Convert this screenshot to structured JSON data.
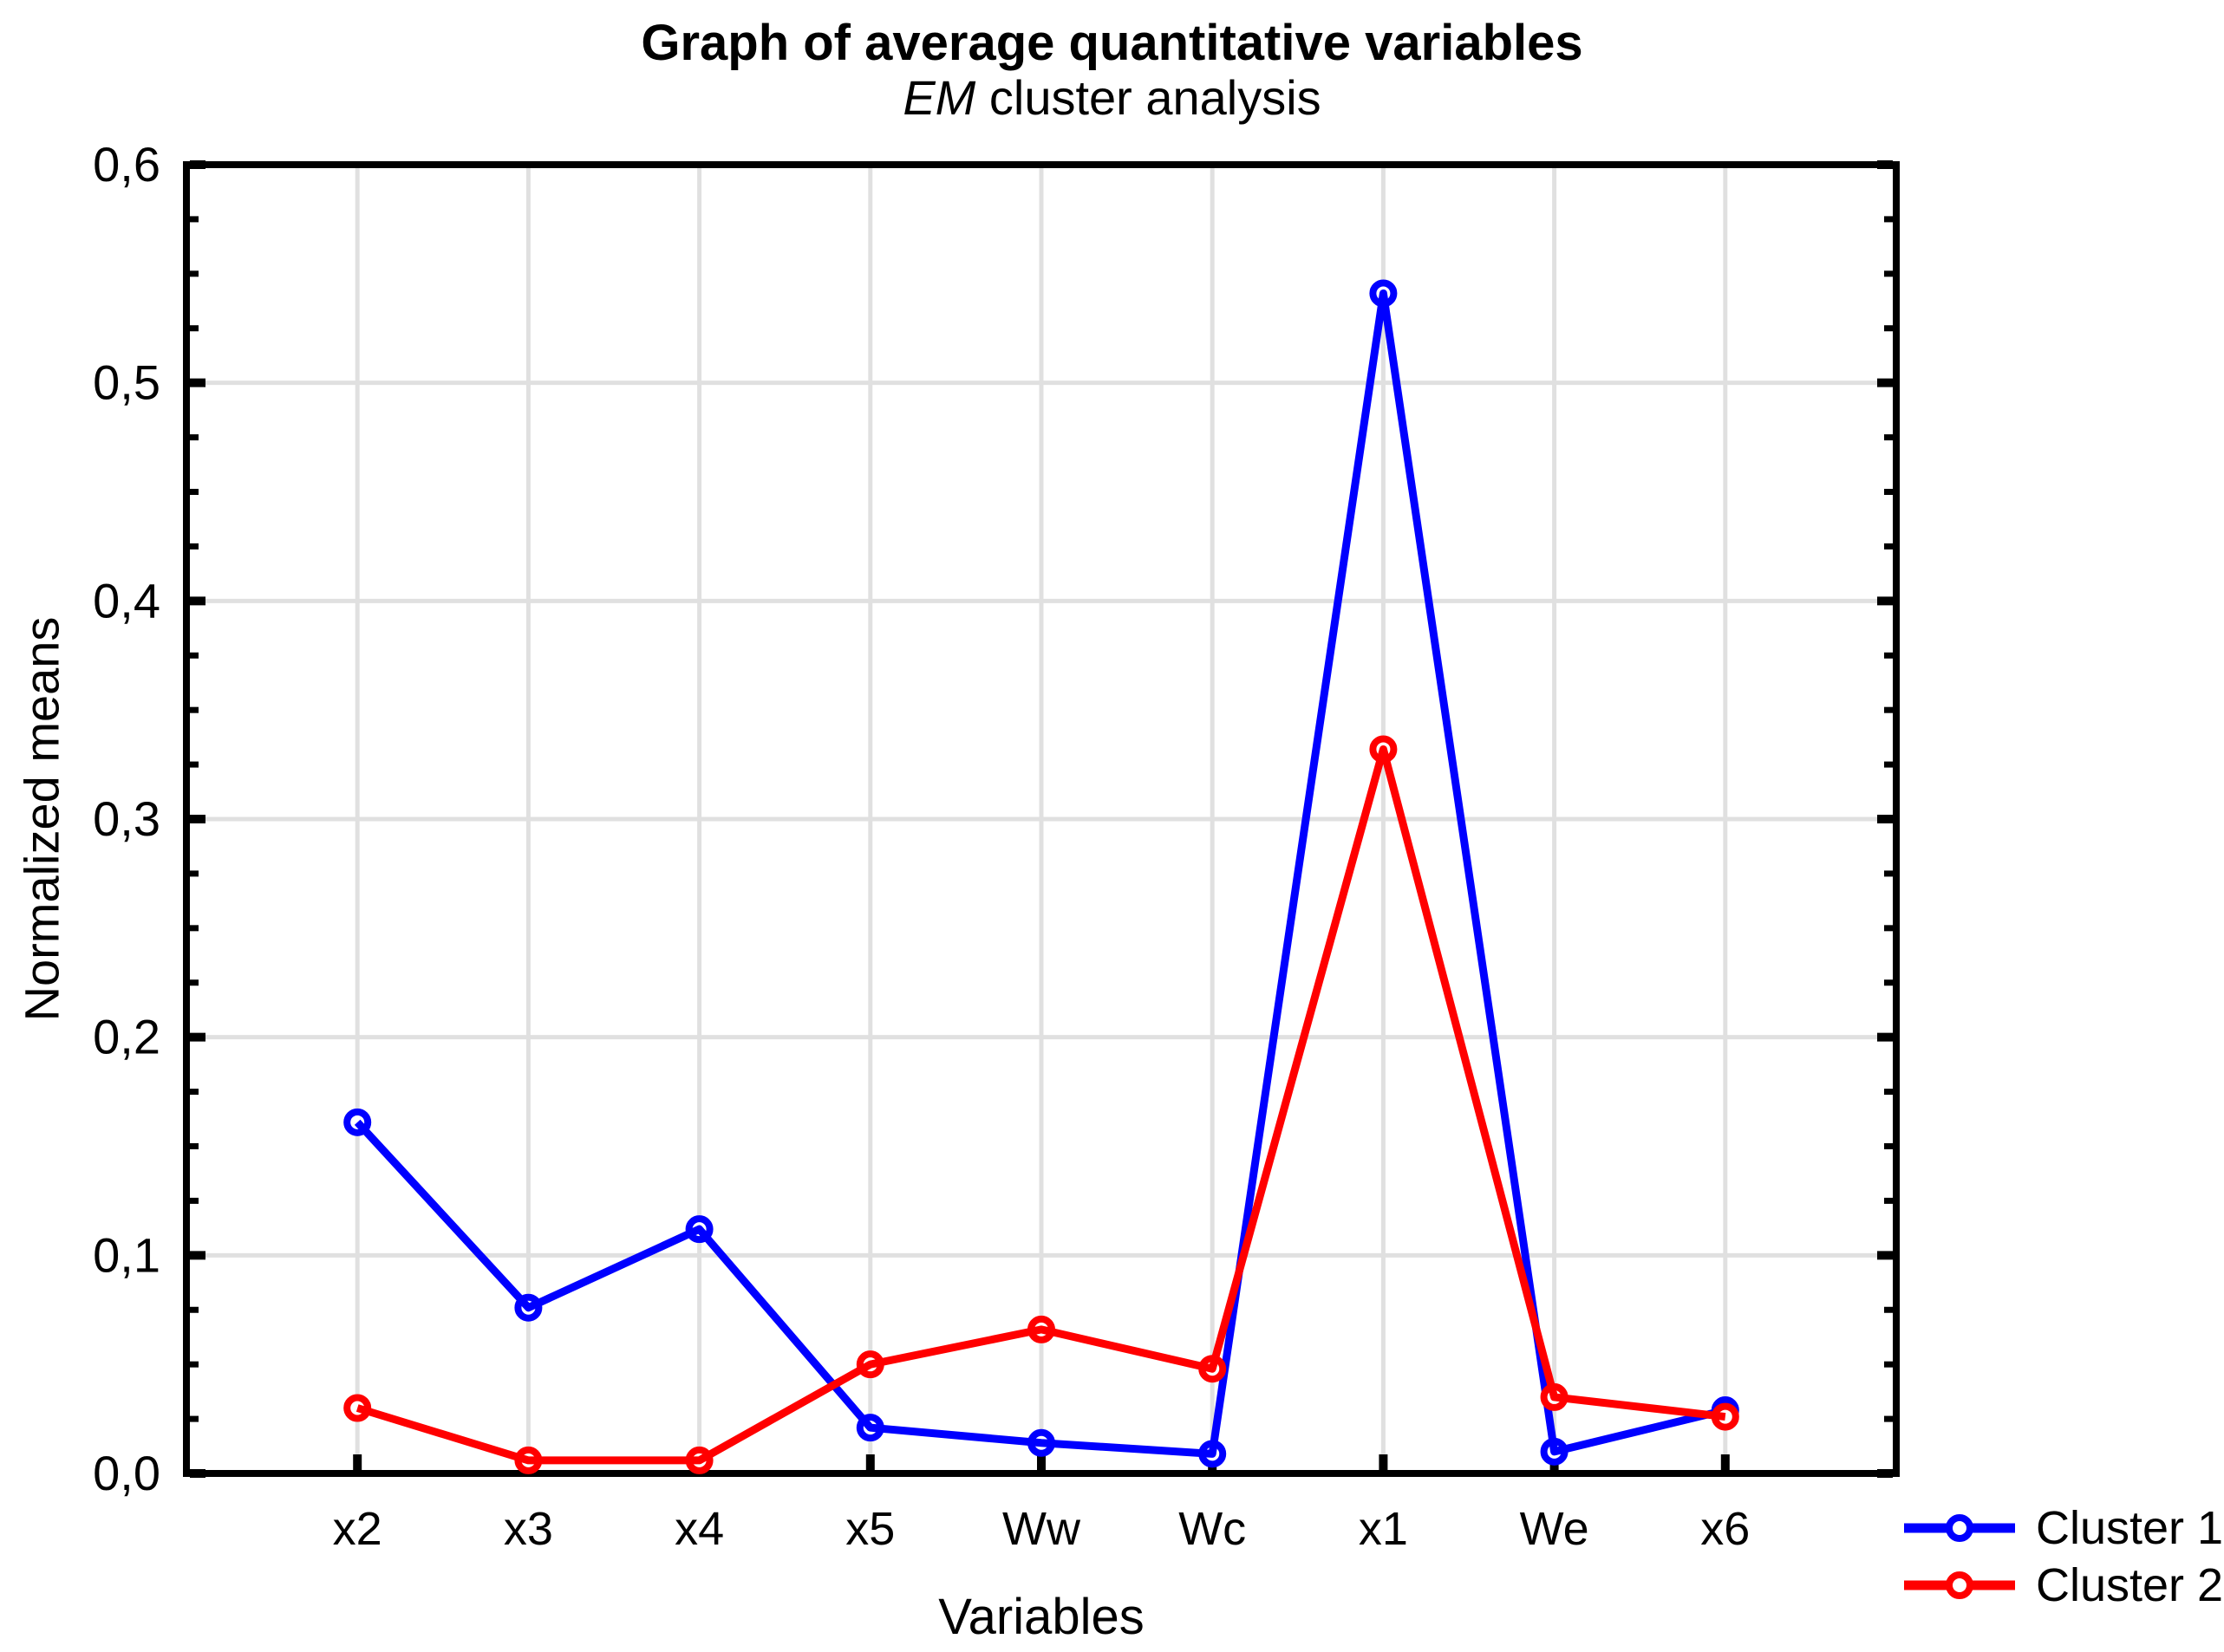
{
  "title": "Graph of average quantitative variables",
  "subtitle": {
    "italic": "EM",
    "rest": " cluster analysis"
  },
  "axes": {
    "y_label": "Normalized means",
    "x_label": "Variables",
    "y_tick_labels": [
      "0,0",
      "0,1",
      "0,2",
      "0,3",
      "0,4",
      "0,5",
      "0,6"
    ],
    "x_tick_labels": [
      "x2",
      "x3",
      "x4",
      "x5",
      "Ww",
      "Wc",
      "x1",
      "We",
      "x6"
    ]
  },
  "legend": {
    "items": [
      {
        "label": "Cluster 1",
        "color": "#0000ff"
      },
      {
        "label": "Cluster 2",
        "color": "#ff0000"
      }
    ]
  },
  "colors": {
    "cluster1": "#0000ff",
    "cluster2": "#ff0000",
    "gridline": "#e0e0e0",
    "axis": "#000000",
    "marker_fill": "#ffffff"
  },
  "chart_data": {
    "type": "line",
    "title": "Graph of average quantitative variables",
    "subtitle": "EM cluster analysis",
    "xlabel": "Variables",
    "ylabel": "Normalized means",
    "categories": [
      "x2",
      "x3",
      "x4",
      "x5",
      "Ww",
      "Wc",
      "x1",
      "We",
      "x6"
    ],
    "series": [
      {
        "name": "Cluster 1",
        "color": "#0000ff",
        "values": [
          0.161,
          0.076,
          0.112,
          0.021,
          0.014,
          0.009,
          0.541,
          0.01,
          0.029
        ]
      },
      {
        "name": "Cluster 2",
        "color": "#ff0000",
        "values": [
          0.03,
          0.006,
          0.006,
          0.05,
          0.066,
          0.048,
          0.332,
          0.035,
          0.026
        ]
      }
    ],
    "ylim": [
      0.0,
      0.6
    ],
    "y_major_step": 0.1,
    "y_minor_step": 0.025,
    "decimal_separator": ",",
    "grid": true,
    "marker": "open-circle",
    "legend_position": "bottom-right"
  }
}
